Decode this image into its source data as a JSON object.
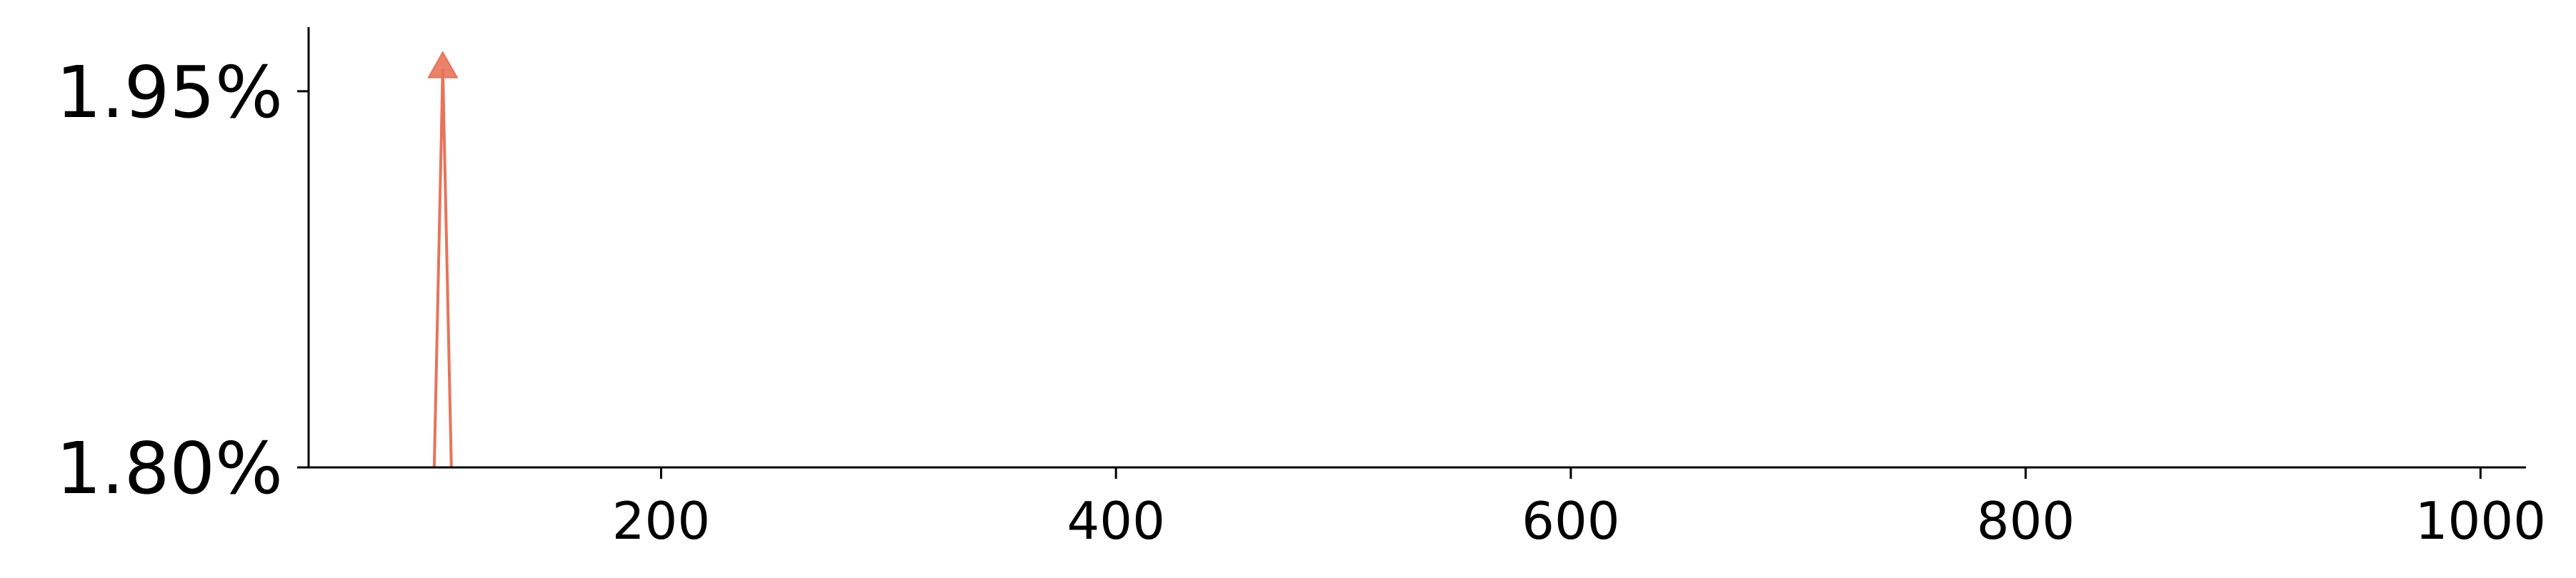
{
  "chart_data": {
    "type": "line",
    "title": "",
    "xlabel": "",
    "ylabel": "",
    "xlim": [
      45,
      1020
    ],
    "ylim": [
      1.8,
      1.975
    ],
    "x_ticks": [
      200,
      400,
      600,
      800,
      1000
    ],
    "x_tick_labels": [
      "200",
      "400",
      "600",
      "800",
      "1000"
    ],
    "y_ticks": [
      1.8,
      1.95
    ],
    "y_tick_labels": [
      "1.80%",
      "1.95%"
    ],
    "grid": false,
    "series": [
      {
        "x": [
          100,
          104,
          108
        ],
        "y": [
          1.79,
          1.959,
          1.79
        ],
        "color": "#E8735A",
        "marker": "triangle-up",
        "marker_x": 104,
        "marker_y": 1.959
      }
    ]
  }
}
